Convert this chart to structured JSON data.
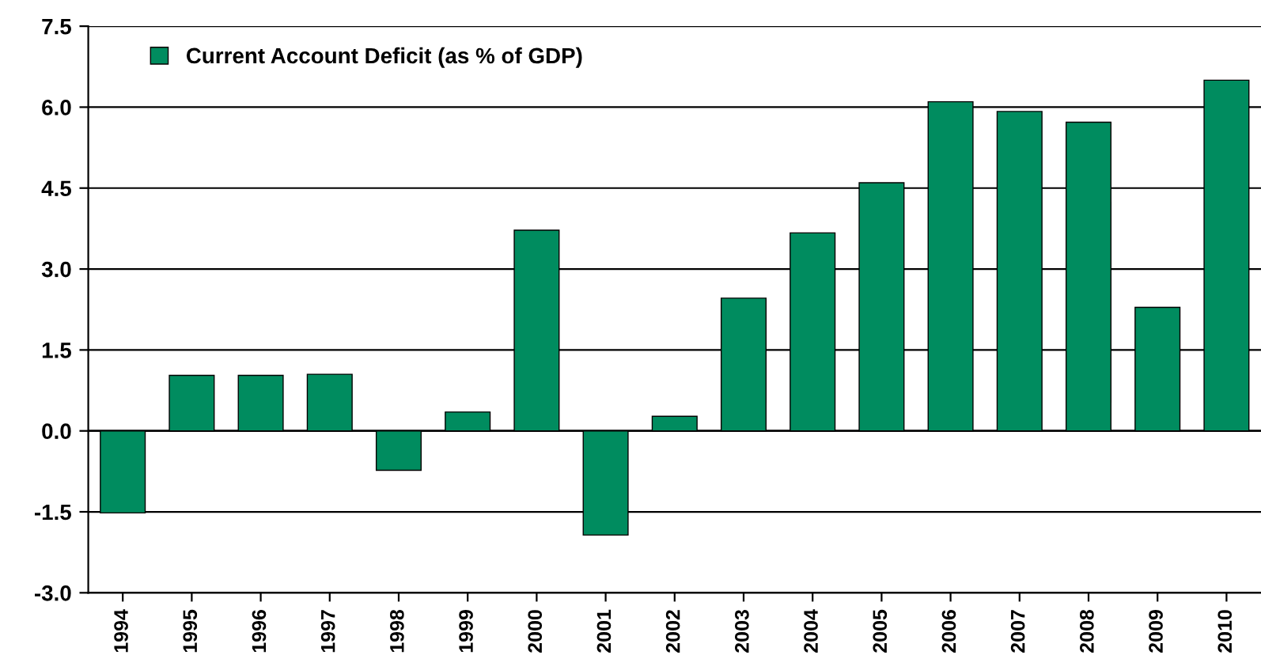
{
  "chart_data": {
    "type": "bar",
    "categories": [
      "1994",
      "1995",
      "1996",
      "1997",
      "1998",
      "1999",
      "2000",
      "2001",
      "2002",
      "2003",
      "2004",
      "2005",
      "2006",
      "2007",
      "2008",
      "2009",
      "2010"
    ],
    "series": [
      {
        "name": "Current Account Deficit (as % of GDP)",
        "color": "#008c5f",
        "values": [
          -1.52,
          1.03,
          1.03,
          1.05,
          -0.73,
          0.35,
          3.72,
          -1.93,
          0.27,
          2.46,
          3.67,
          4.6,
          6.1,
          5.92,
          5.72,
          2.29,
          6.5
        ]
      }
    ],
    "ylim": [
      -3.0,
      7.5
    ],
    "yticks": [
      {
        "value": -3.0,
        "label": "-3.0"
      },
      {
        "value": -1.5,
        "label": "-1.5"
      },
      {
        "value": 0.0,
        "label": "0.0"
      },
      {
        "value": 1.5,
        "label": "1.5"
      },
      {
        "value": 3.0,
        "label": "3.0"
      },
      {
        "value": 4.5,
        "label": "4.5"
      },
      {
        "value": 6.0,
        "label": "6.0"
      },
      {
        "value": 7.5,
        "label": "7.5"
      }
    ],
    "grid": "y",
    "legend": "top left"
  }
}
